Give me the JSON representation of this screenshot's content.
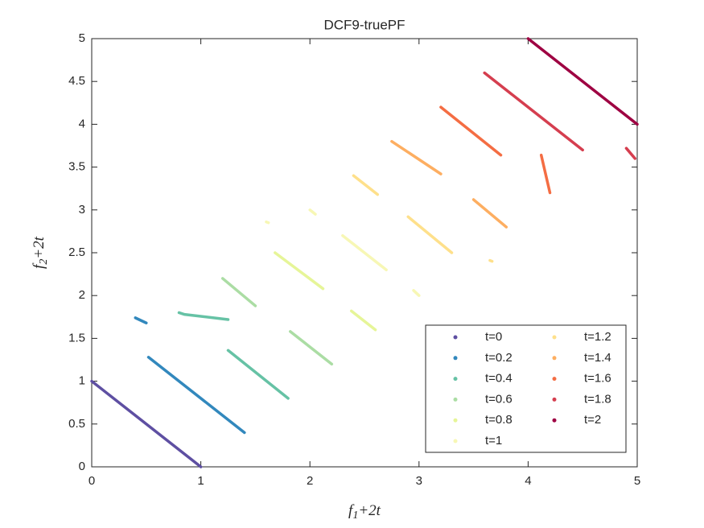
{
  "chart_data": {
    "type": "line",
    "title": "DCF9-truePF",
    "xlabel": {
      "base": "f",
      "sub": "1",
      "rest": "+2t"
    },
    "ylabel": {
      "base": "f",
      "sub": "2",
      "rest": "+2t"
    },
    "xlim": [
      0,
      5
    ],
    "ylim": [
      0,
      5
    ],
    "xticks": [
      0,
      1,
      2,
      3,
      4,
      5
    ],
    "yticks": [
      0,
      0.5,
      1,
      1.5,
      2,
      2.5,
      3,
      3.5,
      4,
      4.5,
      5
    ],
    "grid": false,
    "legend": "lower right",
    "series": [
      {
        "name": "t=0",
        "color": "#5e4fa2",
        "x": [
          0,
          1
        ],
        "values": [
          1,
          0
        ]
      },
      {
        "name": "t=0.2",
        "color": "#3288bd",
        "x": [
          0.52,
          1.4,
          null,
          0.4,
          0.5
        ],
        "values": [
          1.28,
          0.4,
          null,
          1.74,
          1.68
        ]
      },
      {
        "name": "t=0.4",
        "color": "#66c2a5",
        "x": [
          1.25,
          1.8,
          null,
          0.8,
          0.85,
          1.25
        ],
        "values": [
          1.36,
          0.8,
          null,
          1.8,
          1.78,
          1.72
        ]
      },
      {
        "name": "t=0.6",
        "color": "#abdda4",
        "x": [
          1.2,
          1.5,
          null,
          1.82,
          2.2
        ],
        "values": [
          2.2,
          1.88,
          null,
          1.58,
          1.2
        ]
      },
      {
        "name": "t=0.8",
        "color": "#e6f598",
        "x": [
          1.68,
          2.12,
          null,
          2.38,
          2.6
        ],
        "values": [
          2.5,
          2.08,
          null,
          1.82,
          1.6
        ]
      },
      {
        "name": "t=1",
        "color": "#f7f7b5",
        "x": [
          2.3,
          2.7,
          null,
          2.0,
          2.05,
          null,
          1.6,
          1.62,
          null,
          2.95,
          3.0
        ],
        "values": [
          2.7,
          2.3,
          null,
          3.0,
          2.95,
          null,
          2.86,
          2.85,
          null,
          2.06,
          2.0
        ]
      },
      {
        "name": "t=1.2",
        "color": "#fee08b",
        "x": [
          2.4,
          2.62,
          null,
          2.9,
          3.3,
          null,
          3.65,
          3.67
        ],
        "values": [
          3.4,
          3.18,
          null,
          2.92,
          2.5,
          null,
          2.41,
          2.4
        ]
      },
      {
        "name": "t=1.4",
        "color": "#fdae61",
        "x": [
          2.75,
          3.2,
          null,
          3.5,
          3.8
        ],
        "values": [
          3.8,
          3.42,
          null,
          3.12,
          2.8
        ]
      },
      {
        "name": "t=1.6",
        "color": "#f46d43",
        "x": [
          3.2,
          3.75,
          null,
          4.12,
          4.2
        ],
        "values": [
          4.2,
          3.64,
          null,
          3.64,
          3.2
        ]
      },
      {
        "name": "t=1.8",
        "color": "#d53e4f",
        "x": [
          3.6,
          4.5,
          null,
          4.9,
          4.98
        ],
        "values": [
          4.6,
          3.7,
          null,
          3.72,
          3.6
        ]
      },
      {
        "name": "t=2",
        "color": "#9e0142",
        "x": [
          4,
          5
        ],
        "values": [
          5,
          4
        ]
      }
    ]
  }
}
